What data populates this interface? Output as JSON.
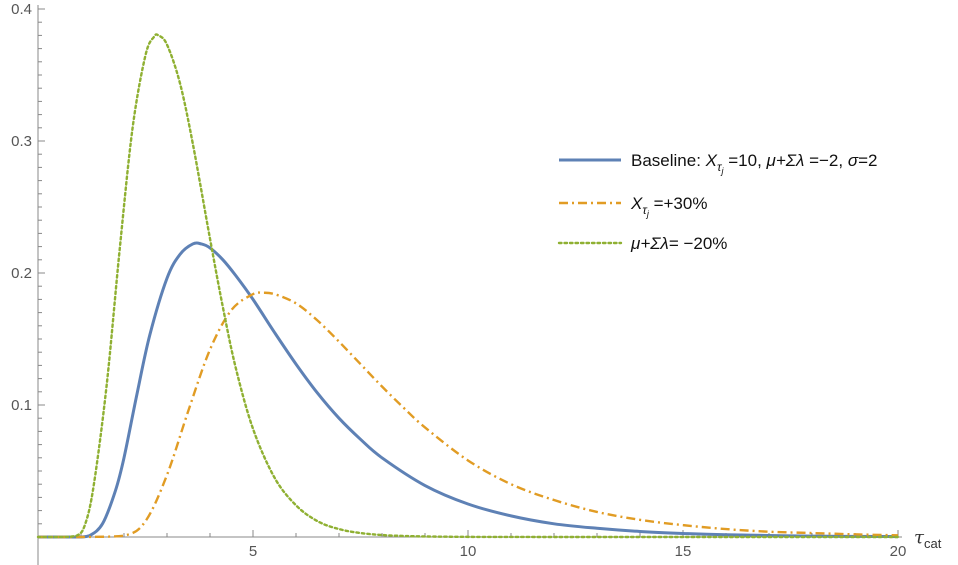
{
  "chart_data": {
    "type": "line",
    "xlabel": "τ",
    "xlabel_subscript": "cat",
    "ylabel": "",
    "xlim": [
      0,
      20
    ],
    "ylim": [
      0,
      0.4
    ],
    "x_ticks": [
      5,
      10,
      15,
      20
    ],
    "x_tick_labels": [
      "5",
      "10",
      "15",
      "20"
    ],
    "y_ticks": [
      0.1,
      0.2,
      0.3,
      0.4
    ],
    "y_tick_labels": [
      "0.1",
      "0.2",
      "0.3",
      "0.4"
    ],
    "grid": false,
    "legend_position": "right",
    "series": [
      {
        "name": "Baseline: X_τj =10, μ+Σλ =−2, σ=2",
        "legend_parts": [
          "Baseline: ",
          "X",
          "τ",
          "j",
          " =10, ",
          "μ+Σλ",
          " =−2, ",
          "σ",
          "=2"
        ],
        "color": "#5E81B5",
        "dash": "solid",
        "x": [
          0,
          0.5,
          1,
          1.2,
          1.5,
          1.8,
          2,
          2.3,
          2.6,
          3,
          3.3,
          3.6,
          3.8,
          4,
          4.3,
          4.6,
          5,
          5.5,
          6,
          6.5,
          7,
          7.5,
          8,
          9,
          10,
          11,
          12,
          13,
          14,
          15,
          16,
          18,
          20
        ],
        "y": [
          0,
          0,
          0,
          0.001,
          0.01,
          0.035,
          0.06,
          0.108,
          0.153,
          0.196,
          0.214,
          0.222,
          0.222,
          0.219,
          0.21,
          0.198,
          0.18,
          0.155,
          0.131,
          0.109,
          0.09,
          0.074,
          0.06,
          0.039,
          0.025,
          0.016,
          0.01,
          0.0066,
          0.0042,
          0.0027,
          0.0017,
          0.0007,
          0.0003
        ]
      },
      {
        "name": "X_τj =+30%",
        "legend_parts": [
          "X",
          "τ",
          "j",
          " =+30%"
        ],
        "color": "#E19C24",
        "dash": "dashdot",
        "x": [
          0,
          1,
          2,
          2.5,
          3,
          3.5,
          4,
          4.5,
          5,
          5.2,
          5.5,
          6,
          6.5,
          7,
          7.5,
          8,
          8.5,
          9,
          10,
          11,
          12,
          13,
          14,
          15,
          16,
          17,
          18,
          19,
          20
        ],
        "y": [
          0,
          0,
          0.001,
          0.012,
          0.047,
          0.096,
          0.142,
          0.172,
          0.184,
          0.185,
          0.184,
          0.177,
          0.164,
          0.148,
          0.131,
          0.114,
          0.098,
          0.083,
          0.058,
          0.04,
          0.028,
          0.019,
          0.013,
          0.009,
          0.006,
          0.004,
          0.003,
          0.002,
          0.0013
        ]
      },
      {
        "name": "μ+Σλ= −20%",
        "legend_parts": [
          "μ+Σλ",
          "= −20%"
        ],
        "color": "#8FB032",
        "dash": "dotted",
        "x": [
          0,
          0.5,
          0.9,
          1.1,
          1.3,
          1.6,
          1.9,
          2.2,
          2.5,
          2.7,
          2.8,
          3,
          3.3,
          3.6,
          4,
          4.3,
          4.6,
          5,
          5.5,
          6,
          6.5,
          7,
          7.5,
          8,
          8.5,
          9,
          10,
          12,
          15,
          20
        ],
        "y": [
          0,
          0,
          0.001,
          0.01,
          0.04,
          0.116,
          0.218,
          0.31,
          0.365,
          0.379,
          0.38,
          0.373,
          0.344,
          0.298,
          0.226,
          0.174,
          0.128,
          0.082,
          0.045,
          0.024,
          0.012,
          0.006,
          0.003,
          0.0015,
          0.0008,
          0.0004,
          0.0001,
          0,
          0,
          0
        ]
      }
    ]
  }
}
